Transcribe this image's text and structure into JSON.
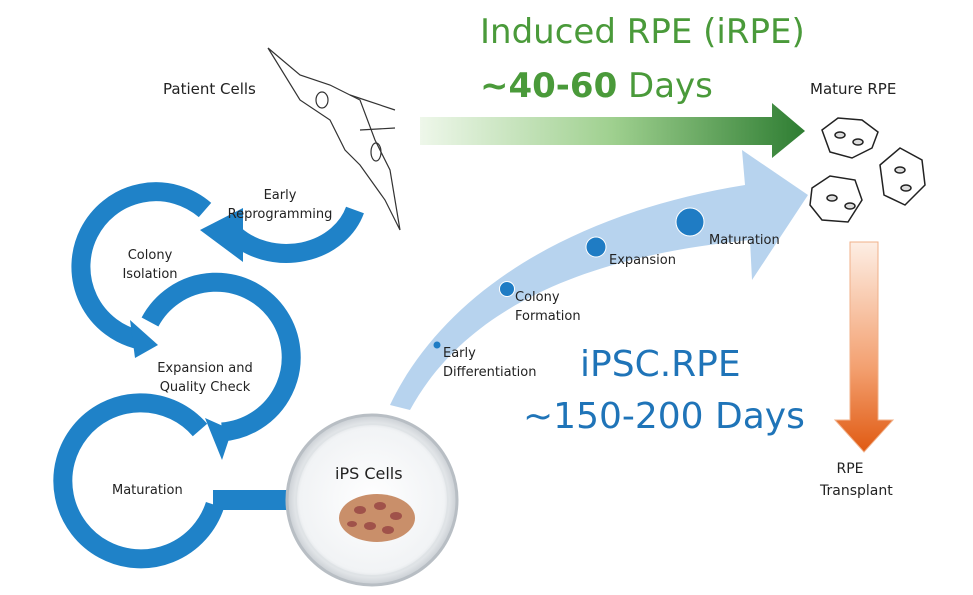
{
  "irpe": {
    "title": "Induced RPE (iRPE)",
    "duration_bold": "~40-60",
    "duration_rest": " Days",
    "color": "#4a9a3a"
  },
  "ipsc": {
    "title": "iPSC.RPE",
    "duration": "~150-200 Days",
    "color": "#1f74b8"
  },
  "nodes": {
    "patient_cells": "Patient Cells",
    "mature_rpe": "Mature RPE",
    "rpe_transplant_1": "RPE",
    "rpe_transplant_2": "Transplant",
    "ips_cells": "iPS Cells"
  },
  "cycle": {
    "early_reprogramming_1": "Early",
    "early_reprogramming_2": "Reprogramming",
    "colony_isolation_1": "Colony",
    "colony_isolation_2": "Isolation",
    "expansion_1": "Expansion and",
    "expansion_2": "Quality Check",
    "maturation": "Maturation"
  },
  "stages": {
    "early_diff_1": "Early",
    "early_diff_2": "Differentiation",
    "colony_formation_1": "Colony",
    "colony_formation_2": "Formation",
    "expansion": "Expansion",
    "maturation": "Maturation"
  },
  "colors": {
    "cycle_blue": "#1f82c8",
    "curve_blue": "#b7d3ee",
    "green_dark": "#2e7d32",
    "orange": "#e8661a"
  }
}
